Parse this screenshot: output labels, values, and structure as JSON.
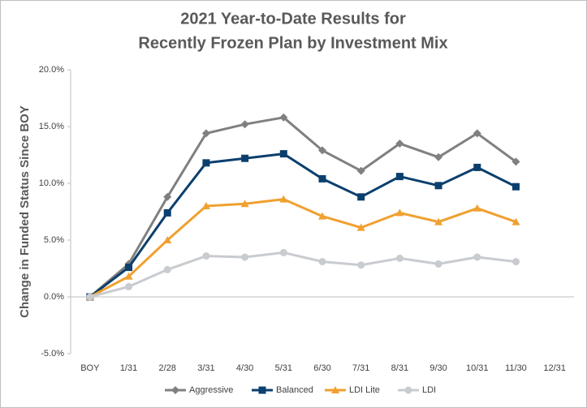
{
  "chart_data": {
    "type": "line",
    "title": [
      "2021 Year-to-Date Results for",
      "Recently Frozen Plan by Investment Mix"
    ],
    "y_label": "Change in Funded Status Since BOY",
    "categories": [
      "BOY",
      "1/31",
      "2/28",
      "3/31",
      "4/30",
      "5/31",
      "6/30",
      "7/31",
      "8/31",
      "9/30",
      "10/31",
      "11/30",
      "12/31"
    ],
    "series": [
      {
        "name": "Aggressive",
        "color": "#808080",
        "marker": "diamond",
        "values": [
          0,
          2.9,
          8.8,
          14.4,
          15.2,
          15.8,
          12.9,
          11.1,
          13.5,
          12.3,
          14.4,
          11.9,
          null
        ]
      },
      {
        "name": "Balanced",
        "color": "#0b3f6e",
        "marker": "square",
        "values": [
          0,
          2.6,
          7.4,
          11.8,
          12.2,
          12.6,
          10.4,
          8.8,
          10.6,
          9.8,
          11.4,
          9.7,
          null
        ]
      },
      {
        "name": "LDI Lite",
        "color": "#f0a030",
        "marker": "triangle",
        "values": [
          0,
          1.8,
          5.0,
          8.0,
          8.2,
          8.6,
          7.1,
          6.1,
          7.4,
          6.6,
          7.8,
          6.6,
          null
        ]
      },
      {
        "name": "LDI",
        "color": "#c8cbd0",
        "marker": "circle",
        "values": [
          0,
          0.9,
          2.4,
          3.6,
          3.5,
          3.9,
          3.1,
          2.8,
          3.4,
          2.9,
          3.5,
          3.1,
          null
        ]
      }
    ],
    "ylim": [
      -5,
      20
    ],
    "yticks": [
      {
        "value": -5,
        "label": "-5.0%"
      },
      {
        "value": 0,
        "label": "0.0%"
      },
      {
        "value": 5,
        "label": "5.0%"
      },
      {
        "value": 10,
        "label": "10.0%"
      },
      {
        "value": 15,
        "label": "15.0%"
      },
      {
        "value": 20,
        "label": "20.0%"
      }
    ],
    "grid": false,
    "legend": "bottom"
  }
}
